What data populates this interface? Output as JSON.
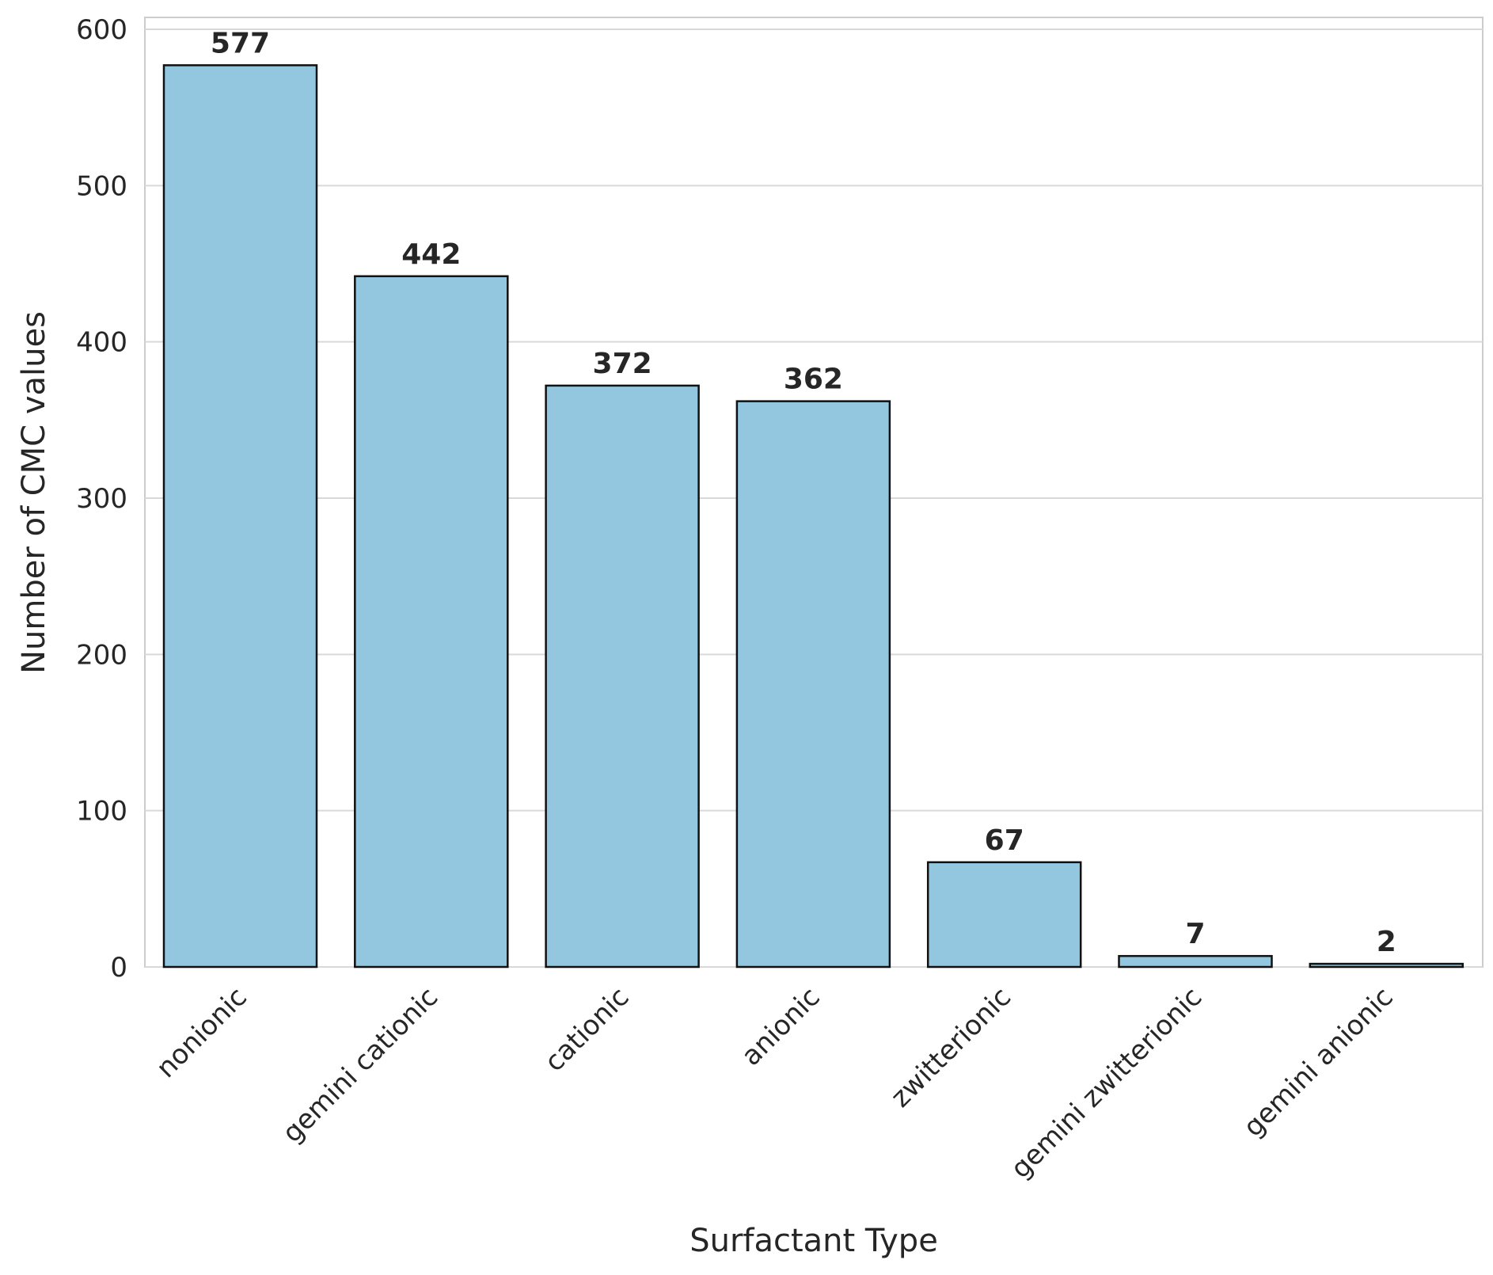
{
  "chart_data": {
    "type": "bar",
    "title": "",
    "xlabel": "Surfactant Type",
    "ylabel": "Number of CMC values",
    "categories": [
      "nonionic",
      "gemini cationic",
      "cationic",
      "anionic",
      "zwitterionic",
      "gemini zwitterionic",
      "gemini anionic"
    ],
    "values": [
      577,
      442,
      372,
      362,
      67,
      7,
      2
    ],
    "data_labels": [
      "577",
      "442",
      "372",
      "362",
      "67",
      "7",
      "2"
    ],
    "ylim": [
      0,
      600
    ],
    "yticks": [
      0,
      100,
      200,
      300,
      400,
      500,
      600
    ],
    "grid": true,
    "legend": "none",
    "bar_color": "#92c7df",
    "bar_edge_color": "#111111",
    "grid_color": "#d9d9d9"
  }
}
